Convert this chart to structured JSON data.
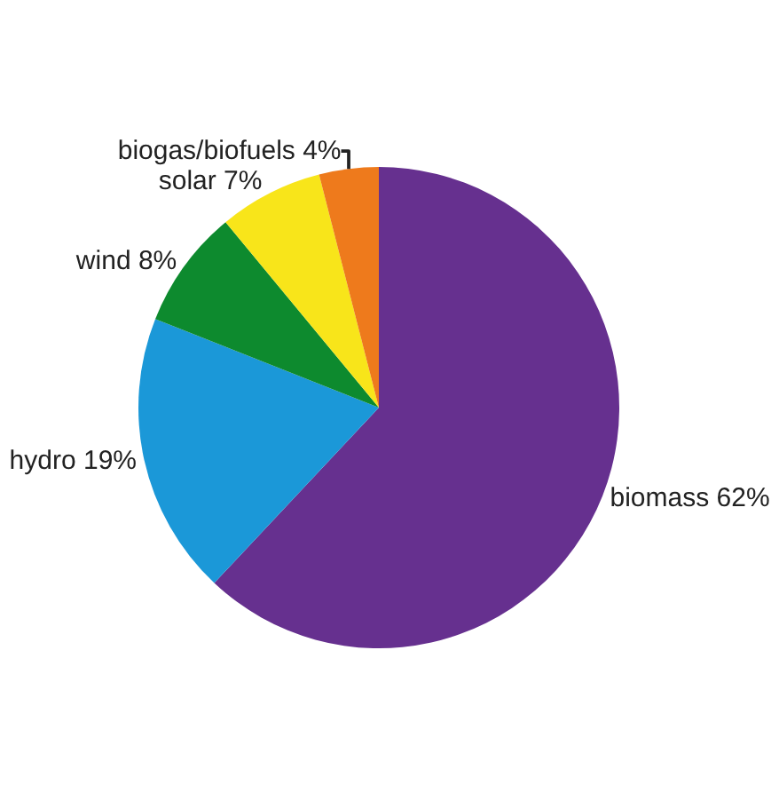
{
  "chart_data": {
    "type": "pie",
    "categories": [
      "biomass",
      "hydro",
      "wind",
      "solar",
      "biogas/biofuels"
    ],
    "values": [
      62,
      19,
      8,
      7,
      4
    ],
    "value_labels": [
      "62%",
      "19%",
      "8%",
      "7%",
      "4%"
    ],
    "colors": [
      "#66308f",
      "#1b98d8",
      "#0d8a2e",
      "#f8e51a",
      "#ee7a1c"
    ],
    "legend": false
  }
}
